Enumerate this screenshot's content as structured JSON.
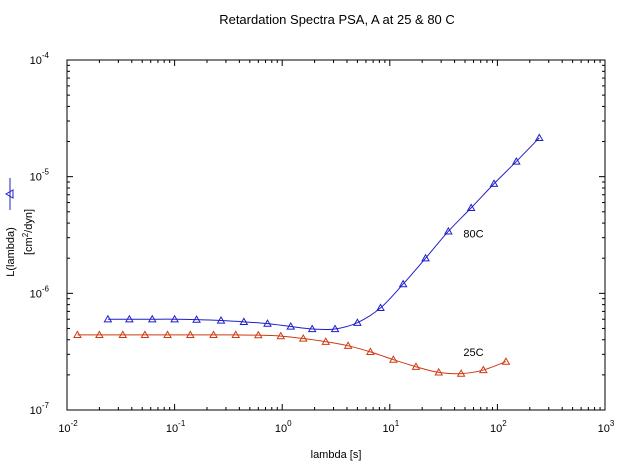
{
  "chart_data": {
    "type": "scatter",
    "title": "Retardation Spectra PSA, A at 25 & 80 C",
    "xlabel": "lambda [s]",
    "ylabel": "L(lambda)",
    "ylabel_unit_base": "[cm",
    "ylabel_unit_sup": "2",
    "ylabel_unit_rest": "/dyn]",
    "xscale": "log",
    "yscale": "log",
    "xlim": [
      0.01,
      1000
    ],
    "ylim": [
      1e-07,
      0.0001
    ],
    "x_ticks": [
      {
        "base": "10",
        "exp": "-2",
        "value": 0.01
      },
      {
        "base": "10",
        "exp": "-1",
        "value": 0.1
      },
      {
        "base": "10",
        "exp": "0",
        "value": 1
      },
      {
        "base": "10",
        "exp": "1",
        "value": 10
      },
      {
        "base": "10",
        "exp": "2",
        "value": 100
      },
      {
        "base": "10",
        "exp": "3",
        "value": 1000
      }
    ],
    "y_ticks": [
      {
        "base": "10",
        "exp": "-7",
        "value": 1e-07
      },
      {
        "base": "10",
        "exp": "-6",
        "value": 1e-06
      },
      {
        "base": "10",
        "exp": "-5",
        "value": 1e-05
      },
      {
        "base": "10",
        "exp": "-4",
        "value": 0.0001
      }
    ],
    "grid": false,
    "marker": "triangle-open",
    "series": [
      {
        "name": "80C",
        "color": "#1f1fcc",
        "points": [
          [
            0.024,
            6e-07
          ],
          [
            0.038,
            6e-07
          ],
          [
            0.062,
            6e-07
          ],
          [
            0.1,
            6e-07
          ],
          [
            0.16,
            5.95e-07
          ],
          [
            0.27,
            5.85e-07
          ],
          [
            0.44,
            5.7e-07
          ],
          [
            0.73,
            5.5e-07
          ],
          [
            1.2,
            5.2e-07
          ],
          [
            1.9,
            4.95e-07
          ],
          [
            3.1,
            4.95e-07
          ],
          [
            5.0,
            5.6e-07
          ],
          [
            8.2,
            7.5e-07
          ],
          [
            13.3,
            1.2e-06
          ],
          [
            21.5,
            2e-06
          ],
          [
            35.0,
            3.4e-06
          ],
          [
            57.0,
            5.4e-06
          ],
          [
            93.0,
            8.7e-06
          ],
          [
            150.0,
            1.35e-05
          ],
          [
            245.0,
            2.15e-05
          ]
        ]
      },
      {
        "name": "25C",
        "color": "#d03a10",
        "points": [
          [
            0.0125,
            4.4e-07
          ],
          [
            0.02,
            4.4e-07
          ],
          [
            0.033,
            4.4e-07
          ],
          [
            0.053,
            4.4e-07
          ],
          [
            0.086,
            4.4e-07
          ],
          [
            0.14,
            4.4e-07
          ],
          [
            0.23,
            4.4e-07
          ],
          [
            0.37,
            4.4e-07
          ],
          [
            0.6,
            4.38e-07
          ],
          [
            0.97,
            4.3e-07
          ],
          [
            1.57,
            4.1e-07
          ],
          [
            2.54,
            3.85e-07
          ],
          [
            4.1,
            3.55e-07
          ],
          [
            6.6,
            3.15e-07
          ],
          [
            10.8,
            2.7e-07
          ],
          [
            17.5,
            2.35e-07
          ],
          [
            28.5,
            2.1e-07
          ],
          [
            46.0,
            2.05e-07
          ],
          [
            74.0,
            2.2e-07
          ],
          [
            120.0,
            2.6e-07
          ]
        ]
      }
    ],
    "annotations": [
      {
        "text": "80C",
        "x": 60,
        "y": 3e-06
      },
      {
        "text": "25C",
        "x": 60,
        "y": 2.9e-07
      }
    ]
  }
}
